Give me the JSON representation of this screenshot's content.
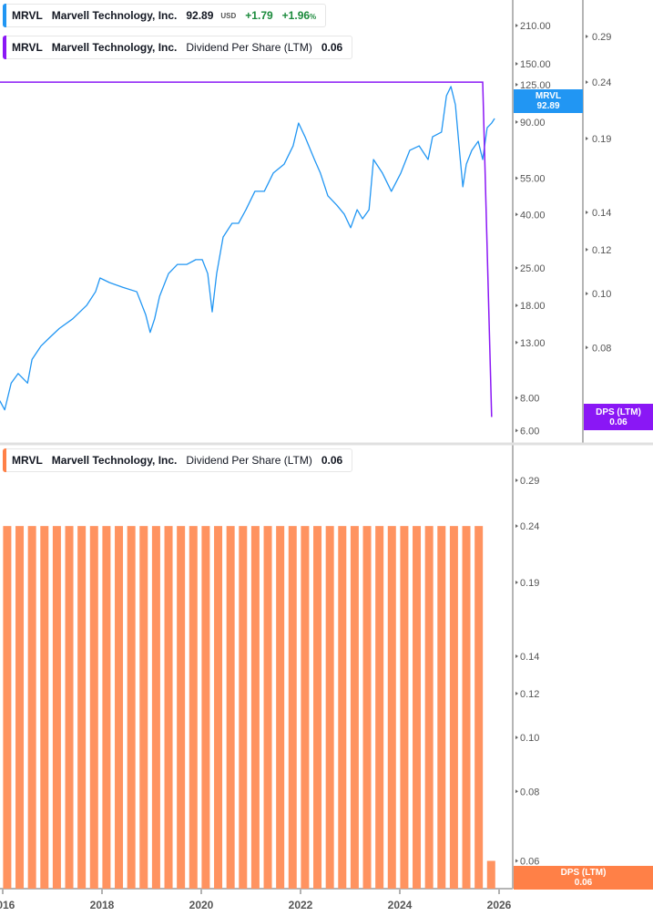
{
  "colors": {
    "price": "#2196f3",
    "dps_line": "#8a17f5",
    "dps_bars": "#ff9360",
    "dps_tag": "#ff8047",
    "up": "#1b8a3c"
  },
  "legends": {
    "price": {
      "ticker": "MRVL",
      "name": "Marvell Technology, Inc.",
      "value": "92.89",
      "currency": "USD",
      "change": "+1.79",
      "change_pct": "+1.96",
      "pct_sign": "%"
    },
    "dps_top": {
      "ticker": "MRVL",
      "name": "Marvell Technology, Inc.",
      "metric": "Dividend Per Share (LTM)",
      "value": "0.06"
    },
    "dps_bottom": {
      "ticker": "MRVL",
      "name": "Marvell Technology, Inc.",
      "metric": "Dividend Per Share (LTM)",
      "value": "0.06"
    }
  },
  "tags": {
    "price": {
      "label": "MRVL",
      "value": "92.89"
    },
    "dps_top": {
      "label": "DPS (LTM)",
      "value": "0.06"
    },
    "dps_bottom": {
      "label": "DPS (LTM)",
      "value": "0.06"
    }
  },
  "chart_data": [
    {
      "type": "line",
      "panel": "top",
      "scale": "log",
      "price_axis": {
        "ticks": [
          210,
          150,
          125,
          90,
          55,
          40,
          25,
          18,
          13,
          8,
          6
        ],
        "tick_labels": [
          "210.00",
          "150.00",
          "125.00",
          "90.00",
          "55.00",
          "40.00",
          "25.00",
          "18.00",
          "13.00",
          "8.00",
          "6.00"
        ],
        "range": [
          6,
          210
        ]
      },
      "dps_axis": {
        "ticks": [
          0.29,
          0.24,
          0.19,
          0.14,
          0.12,
          0.1,
          0.08
        ],
        "tick_labels": [
          "0.29",
          "0.24",
          "0.19",
          "0.14",
          "0.12",
          "0.10",
          "0.08"
        ],
        "range": [
          0.06,
          0.29
        ]
      },
      "x_range": [
        2016,
        2026
      ],
      "series": [
        {
          "name": "MRVL",
          "axis": "price",
          "x": [
            2015.94,
            2016.04,
            2016.17,
            2016.31,
            2016.5,
            2016.59,
            2016.77,
            2016.95,
            2017.14,
            2017.41,
            2017.69,
            2017.87,
            2017.96,
            2018.15,
            2018.42,
            2018.7,
            2018.88,
            2018.97,
            2019.06,
            2019.16,
            2019.34,
            2019.52,
            2019.71,
            2019.89,
            2020.02,
            2020.13,
            2020.22,
            2020.31,
            2020.44,
            2020.62,
            2020.75,
            2020.9,
            2021.08,
            2021.27,
            2021.45,
            2021.67,
            2021.85,
            2021.96,
            2022.09,
            2022.28,
            2022.4,
            2022.55,
            2022.73,
            2022.88,
            2023.01,
            2023.14,
            2023.25,
            2023.38,
            2023.47,
            2023.65,
            2023.83,
            2024.02,
            2024.2,
            2024.39,
            2024.57,
            2024.66,
            2024.84,
            2024.94,
            2025.03,
            2025.12,
            2025.21,
            2025.27,
            2025.34,
            2025.45,
            2025.58,
            2025.67,
            2025.76,
            2025.85,
            2025.91
          ],
          "y": [
            7.8,
            7.2,
            9.1,
            9.9,
            9.1,
            11.2,
            12.6,
            13.6,
            14.7,
            16.0,
            18.0,
            20.3,
            22.9,
            22.0,
            21.1,
            20.3,
            16.6,
            14.2,
            16.0,
            19.5,
            23.8,
            25.8,
            25.8,
            26.9,
            26.9,
            23.8,
            17.0,
            23.8,
            32.8,
            37.0,
            37.0,
            41.7,
            49.0,
            49.0,
            57.5,
            62.2,
            73.0,
            89.2,
            79.1,
            64.8,
            57.5,
            47.1,
            43.4,
            40.1,
            35.6,
            41.7,
            38.5,
            41.7,
            64.8,
            57.5,
            49.0,
            57.5,
            70.2,
            73.0,
            64.8,
            79.1,
            82.4,
            113.4,
            122.9,
            104.7,
            67.4,
            51.0,
            62.2,
            70.2,
            76.0,
            64.8,
            85.7,
            89.2,
            92.89
          ]
        },
        {
          "name": "DPS (LTM)",
          "axis": "dps",
          "x": [
            2015.94,
            2025.67,
            2025.85
          ],
          "y": [
            0.24,
            0.24,
            0.06
          ]
        }
      ]
    },
    {
      "type": "bar",
      "panel": "bottom",
      "scale": "log",
      "y_axis": {
        "ticks": [
          0.29,
          0.24,
          0.19,
          0.14,
          0.12,
          0.1,
          0.08,
          0.06
        ],
        "tick_labels": [
          "0.29",
          "0.24",
          "0.19",
          "0.14",
          "0.12",
          "0.10",
          "0.08",
          "0.06"
        ],
        "range": [
          0.06,
          0.29
        ]
      },
      "x_ticks": [
        2016,
        2018,
        2020,
        2022,
        2024,
        2026
      ],
      "x_tick_labels": [
        "2016",
        "2018",
        "2020",
        "2022",
        "2024",
        "2026"
      ],
      "series": [
        {
          "name": "DPS (LTM)",
          "start": 2016.09,
          "step_years": 0.25,
          "values": [
            0.24,
            0.24,
            0.24,
            0.24,
            0.24,
            0.24,
            0.24,
            0.24,
            0.24,
            0.24,
            0.24,
            0.24,
            0.24,
            0.24,
            0.24,
            0.24,
            0.24,
            0.24,
            0.24,
            0.24,
            0.24,
            0.24,
            0.24,
            0.24,
            0.24,
            0.24,
            0.24,
            0.24,
            0.24,
            0.24,
            0.24,
            0.24,
            0.24,
            0.24,
            0.24,
            0.24,
            0.24,
            0.24,
            0.24,
            0.06
          ]
        }
      ]
    }
  ]
}
